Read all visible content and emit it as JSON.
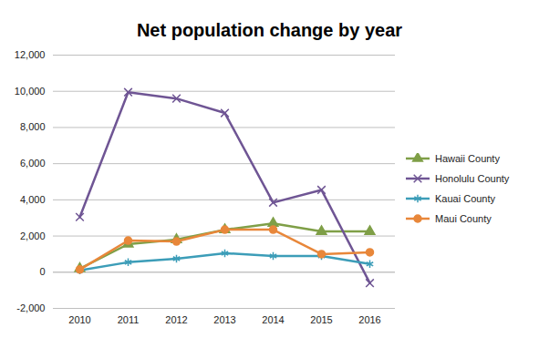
{
  "chart_data": {
    "type": "line",
    "title": "Net population change by year",
    "categories": [
      "2010",
      "2011",
      "2012",
      "2013",
      "2014",
      "2015",
      "2016"
    ],
    "series": [
      {
        "name": "Hawaii County",
        "color": "#7f9f47",
        "marker": "triangle",
        "values": [
          200,
          1550,
          1800,
          2350,
          2700,
          2250,
          2250
        ]
      },
      {
        "name": "Honolulu County",
        "color": "#6f5594",
        "marker": "cross",
        "values": [
          3050,
          9950,
          9600,
          8800,
          3850,
          4550,
          -600
        ]
      },
      {
        "name": "Kauai County",
        "color": "#3c9db8",
        "marker": "asterisk",
        "values": [
          100,
          550,
          750,
          1050,
          900,
          900,
          450
        ]
      },
      {
        "name": "Maui County",
        "color": "#e8873a",
        "marker": "circle",
        "values": [
          150,
          1750,
          1700,
          2350,
          2350,
          1000,
          1100
        ]
      }
    ],
    "ylim": [
      -2000,
      12000
    ],
    "yticks": [
      {
        "value": -2000,
        "label": "-2,000"
      },
      0,
      {
        "value": 2000,
        "label": "2,000"
      },
      {
        "value": 4000,
        "label": "4,000"
      },
      {
        "value": 6000,
        "label": "6,000"
      },
      {
        "value": 8000,
        "label": "8,000"
      },
      {
        "value": 10000,
        "label": "10,000"
      },
      {
        "value": 12000,
        "label": "12,000"
      }
    ],
    "grid": true,
    "legend": "right"
  }
}
